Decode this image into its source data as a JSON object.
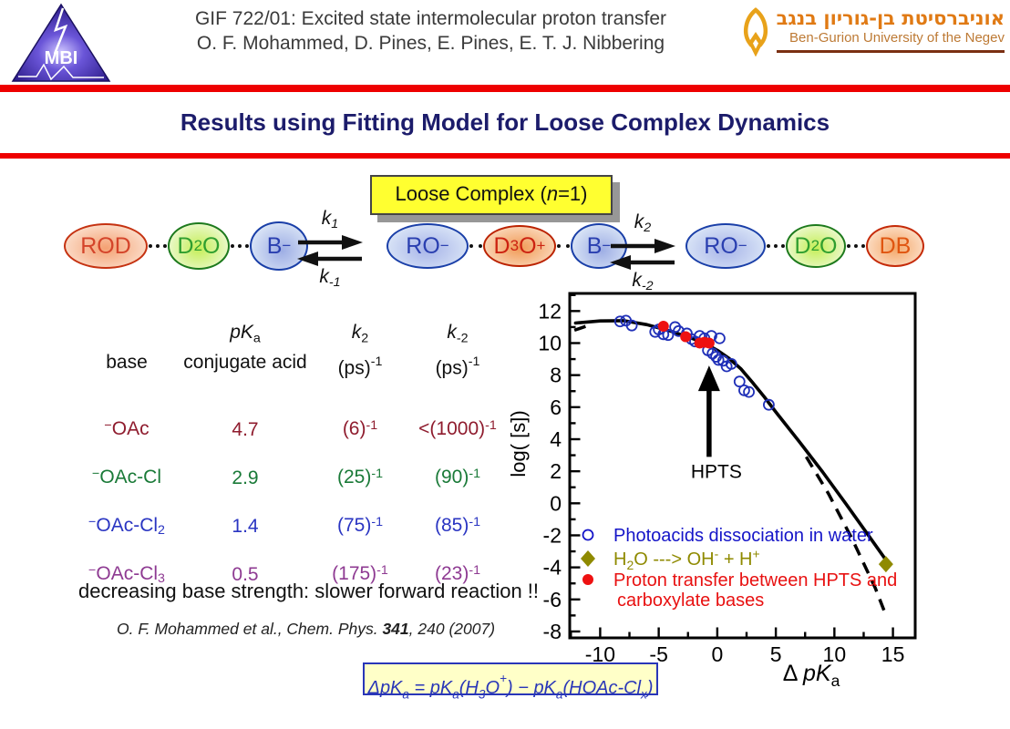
{
  "header": {
    "line1": "GIF 722/01: Excited state intermolecular proton transfer",
    "line2": "O. F. Mohammed, D. Pines, E. Pines, E. T. J. Nibbering",
    "mbi_logo_text": "MBI",
    "university_hebrew": "אוניברסיטת בן-גוריון בנגב",
    "university_english": "Ben-Gurion University of the Negev"
  },
  "slide_title": "Results using Fitting Model for Loose Complex Dynamics",
  "scheme": {
    "box_label_rich": "Loose Complex (//n//=1)",
    "state1": [
      "ROD",
      "D_{2}O",
      "B^{−}"
    ],
    "state2": [
      "RO^{−}",
      "D_{3}O^{+}",
      "B^{−}"
    ],
    "state3": [
      "RO^{−}",
      "D_{2}O",
      "DB"
    ],
    "eq1": {
      "top_rich": "//k//_{1}",
      "bottom_rich": "//k//_{-1}"
    },
    "eq2": {
      "top_rich": "//k//_{2}",
      "bottom_rich": "//k//_{-2}"
    }
  },
  "table": {
    "header": {
      "col1_bottom": "base",
      "col2_top_rich": "//pK//_{a}",
      "col2_bottom": "conjugate acid",
      "col3_top_rich": "//k//_{2}",
      "col3_bottom_rich": "(ps)^{-1}",
      "col4_top_rich": "//k//_{-2}",
      "col4_bottom_rich": "(ps)^{-1}"
    },
    "rows": [
      {
        "base_rich": "^{−}OAc",
        "pka": "4.7",
        "k2_rich": "(6)^{-1}",
        "km2_rich": "<(1000)^{-1}",
        "color": "#8f1c2e"
      },
      {
        "base_rich": "^{−}OAc-Cl",
        "pka": "2.9",
        "k2_rich": "(25)^{-1}",
        "km2_rich": "(90)^{-1}",
        "color": "#1a7a38"
      },
      {
        "base_rich": "^{−}OAc-Cl_{2}",
        "pka": "1.4",
        "k2_rich": "(75)^{-1}",
        "km2_rich": "(85)^{-1}",
        "color": "#2a35c2"
      },
      {
        "base_rich": "^{−}OAc-Cl_{3}",
        "pka": "0.5",
        "k2_rich": "(175)^{-1}",
        "km2_rich": "(23)^{-1}",
        "color": "#8e3a92"
      }
    ]
  },
  "note": "decreasing base strength: slower forward reaction !!",
  "citation": {
    "pre": "O. F. Mohammed et al., Chem. Phys. ",
    "volume": "341",
    "post": ", 240 (2007)"
  },
  "formula_rich": "Δ//pK//_{a} = //pK//_{a}(H_{3}O^{+}) − //pK//_{a}(HOAc-Cl_{x})",
  "colors": {
    "rule_red": "#ee0000",
    "title_navy": "#1c1c6b",
    "box_yellow": "#ffff30",
    "legend_blue": "#1515c8",
    "legend_olive": "#8f8a00",
    "legend_red": "#e81111"
  },
  "chart_data": {
    "type": "scatter",
    "xlabel_rich": "Δ //pK//_{a}",
    "ylabel_rich": "log( [s])",
    "xlim": [
      -12.6,
      16.9
    ],
    "ylim": [
      -8.4,
      13.1
    ],
    "x_major_ticks": [
      -10,
      -5,
      0,
      5,
      10,
      15
    ],
    "x_minor_step": 2.5,
    "y_major_ticks": [
      -8,
      -6,
      -4,
      -2,
      0,
      2,
      4,
      6,
      8,
      10,
      12
    ],
    "y_minor_step": 1,
    "grid": false,
    "legend_position": "lower-left",
    "series": [
      {
        "name_rich": "Photoacids dissociation in water",
        "marker": "open-circle",
        "color": "#2030b8",
        "points": [
          [
            -8.3,
            11.35
          ],
          [
            -7.8,
            11.4
          ],
          [
            -7.3,
            11.1
          ],
          [
            -5.3,
            10.7
          ],
          [
            -5.0,
            10.85
          ],
          [
            -4.6,
            10.55
          ],
          [
            -4.2,
            10.5
          ],
          [
            -3.6,
            11.0
          ],
          [
            -3.3,
            10.75
          ],
          [
            -2.6,
            10.6
          ],
          [
            -2.2,
            10.25
          ],
          [
            -1.9,
            10.1
          ],
          [
            -1.5,
            10.45
          ],
          [
            -1.1,
            10.3
          ],
          [
            -0.5,
            10.45
          ],
          [
            0.2,
            10.3
          ],
          [
            -0.8,
            9.55
          ],
          [
            -0.4,
            9.35
          ],
          [
            -0.1,
            9.15
          ],
          [
            0.1,
            8.95
          ],
          [
            0.5,
            8.9
          ],
          [
            0.8,
            8.55
          ],
          [
            1.2,
            8.7
          ],
          [
            1.9,
            7.6
          ],
          [
            2.3,
            7.05
          ],
          [
            2.7,
            6.95
          ],
          [
            4.4,
            6.15
          ]
        ]
      },
      {
        "name_rich": "H_{2}O ---> OH^{-} + H^{+}",
        "marker": "diamond",
        "color": "#8f8a00",
        "points": [
          [
            14.4,
            -3.8
          ]
        ]
      },
      {
        "name_rich": "Proton transfer between HPTS and",
        "name_rich_line2": "carboxylate bases",
        "marker": "filled-circle",
        "color": "#ee1111",
        "points": [
          [
            -4.6,
            11.05
          ],
          [
            -2.7,
            10.4
          ],
          [
            -1.5,
            10.0
          ],
          [
            -1.1,
            10.05
          ],
          [
            -0.7,
            10.0
          ]
        ]
      }
    ],
    "fit_curve_solid": [
      [
        -12.1,
        11.25
      ],
      [
        -10,
        11.38
      ],
      [
        -8,
        11.4
      ],
      [
        -6,
        11.15
      ],
      [
        -4,
        10.75
      ],
      [
        -2,
        10.25
      ],
      [
        -1,
        9.95
      ],
      [
        0,
        9.55
      ],
      [
        1,
        9.05
      ],
      [
        2,
        8.4
      ],
      [
        3,
        7.55
      ],
      [
        4,
        6.65
      ],
      [
        5,
        5.7
      ],
      [
        7,
        3.85
      ],
      [
        9,
        1.95
      ],
      [
        11,
        -0.05
      ],
      [
        13,
        -2.1
      ],
      [
        14.6,
        -3.75
      ]
    ],
    "dashed_segments": [
      [
        [
          -12.2,
          10.8
        ],
        [
          -11.2,
          11.05
        ]
      ],
      [
        [
          7.6,
          2.9
        ],
        [
          9.5,
          0.6
        ],
        [
          11.5,
          -2.2
        ],
        [
          13.5,
          -5.3
        ],
        [
          14.3,
          -6.8
        ]
      ]
    ],
    "annotation": {
      "text": "HPTS",
      "arrow_x": -0.7,
      "arrow_y_from": 2.9,
      "arrow_y_to": 8.6
    }
  }
}
